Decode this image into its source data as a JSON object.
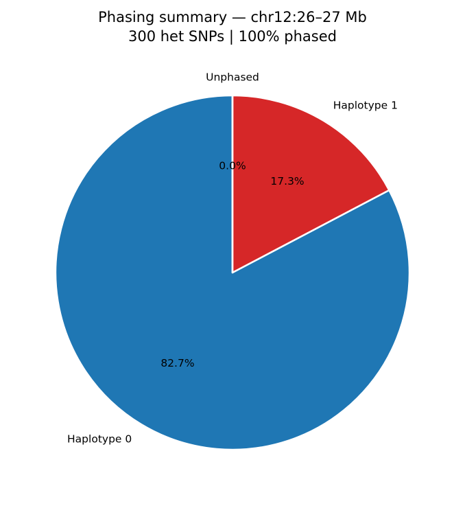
{
  "chart_data": {
    "type": "pie",
    "title": "Phasing summary — chr12:26–27 Mb",
    "subtitle": "300 het SNPs  |  100% phased",
    "categories": [
      "Haplotype 0",
      "Haplotype 1",
      "Unphased"
    ],
    "values": [
      82.7,
      17.3,
      0.0
    ],
    "value_labels": [
      "82.7%",
      "17.3%",
      "0.0%"
    ],
    "colors": [
      "#1f77b4",
      "#d62728",
      "#7f7f7f"
    ],
    "start_angle": 90,
    "counterclockwise": true
  }
}
